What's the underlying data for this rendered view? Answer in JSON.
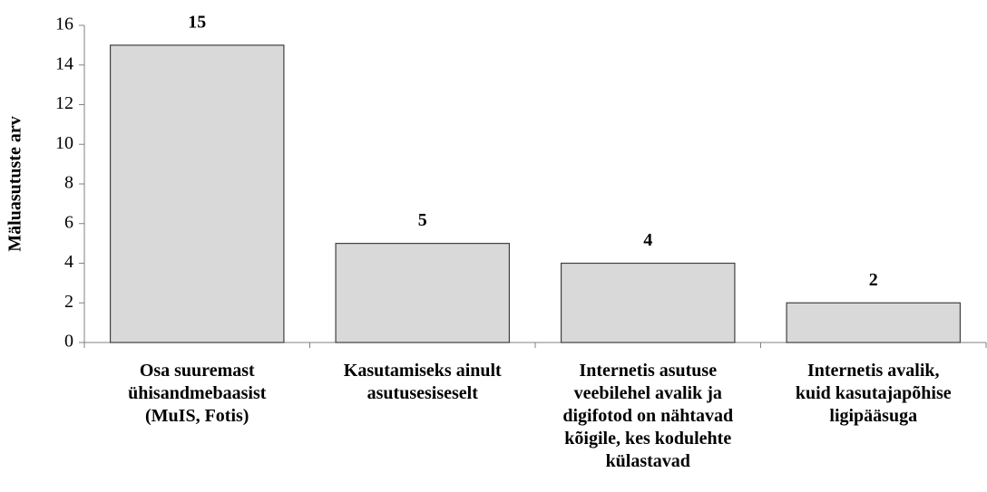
{
  "chart_data": {
    "type": "bar",
    "y_label": "Mäluasutuste arv",
    "categories": [
      "Osa suuremast\nühisandmebaasist\n(MuIS, Fotis)",
      "Kasutamiseks ainult\nasutusesiseselt",
      "Internetis asutuse\nveebilehel avalik ja\ndigifotod on nähtavad\nkõigile, kes kodulehte\nkülastavad",
      "Internetis avalik,\nkuid kasutajapõhise\nligipääsuga"
    ],
    "values": [
      15,
      5,
      4,
      2
    ],
    "color": "#d9d9d9",
    "ylim": [
      0,
      16
    ],
    "yticks": [
      0,
      2,
      4,
      6,
      8,
      10,
      12,
      14,
      16
    ],
    "grid": false
  }
}
